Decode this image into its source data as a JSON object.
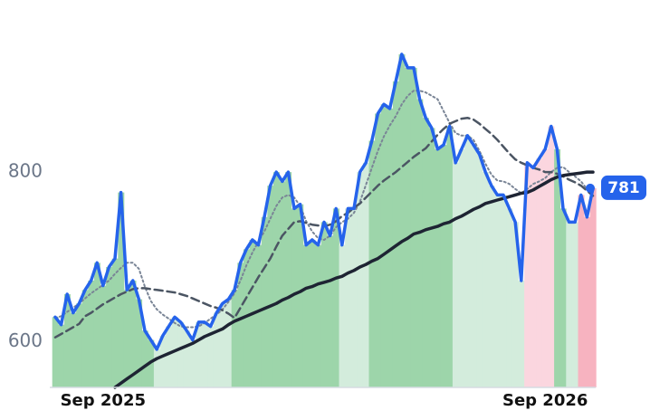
{
  "chart_data": {
    "type": "line",
    "categories": [
      null,
      null,
      null,
      null,
      null,
      null,
      null,
      null,
      "Sep 2025",
      null,
      null,
      null,
      null,
      null,
      null,
      null,
      null,
      null,
      null,
      null,
      null,
      null,
      null,
      null,
      null,
      null,
      null,
      null,
      null,
      null,
      null,
      null,
      null,
      null,
      null,
      null,
      null,
      null,
      null,
      null,
      null,
      null,
      null,
      null,
      null,
      null,
      null,
      null,
      null,
      null,
      null,
      null,
      null,
      null,
      null,
      null,
      null,
      null,
      null,
      null,
      null,
      null,
      null,
      null,
      null,
      null,
      null,
      null,
      null,
      null,
      null,
      null,
      null,
      null,
      null,
      null,
      null,
      null,
      null,
      null,
      null,
      null,
      "Sep 2026",
      null,
      null,
      null,
      null,
      null,
      null,
      null,
      null
    ],
    "series": [
      {
        "color": "#2563eb",
        "values": [
          629,
          620,
          656,
          634,
          645,
          661,
          672,
          693,
          666,
          688,
          698,
          776,
          661,
          672,
          650,
          613,
          602,
          591,
          607,
          618,
          629,
          623,
          613,
          602,
          623,
          623,
          618,
          634,
          645,
          650,
          661,
          693,
          709,
          720,
          714,
          747,
          784,
          800,
          789,
          800,
          757,
          762,
          714,
          720,
          714,
          741,
          725,
          757,
          714,
          757,
          757,
          800,
          811,
          837,
          869,
          880,
          875,
          907,
          939,
          923,
          923,
          886,
          864,
          852,
          827,
          832,
          854,
          811,
          827,
          843,
          832,
          821,
          800,
          784,
          773,
          773,
          757,
          741,
          672,
          811,
          805,
          816,
          827,
          854,
          827,
          757,
          741,
          741,
          773,
          747,
          781
        ],
        "fill_colors": [
          "#9dd5aa",
          "#9dd5aa",
          "#9dd5aa",
          "#9dd5aa",
          "#9dd5aa",
          "#9dd5aa",
          "#9dd5aa",
          "#9dd5aa",
          "#9dd5aa",
          "#9dd5aa",
          "#9dd5aa",
          "#9dd5aa",
          "#9dd5aa",
          "#9dd5aa",
          "#9dd5aa",
          "#9dd5aa",
          "#9dd5aa",
          "#d3ecdc",
          "#d3ecdc",
          "#d3ecdc",
          "#d3ecdc",
          "#d3ecdc",
          "#d3ecdc",
          "#d3ecdc",
          "#d3ecdc",
          "#d3ecdc",
          "#d3ecdc",
          "#d3ecdc",
          "#d3ecdc",
          "#d3ecdc",
          "#9dd5aa",
          "#9dd5aa",
          "#9dd5aa",
          "#9dd5aa",
          "#9dd5aa",
          "#9dd5aa",
          "#9dd5aa",
          "#9dd5aa",
          "#9dd5aa",
          "#9dd5aa",
          "#9dd5aa",
          "#9dd5aa",
          "#9dd5aa",
          "#9dd5aa",
          "#9dd5aa",
          "#9dd5aa",
          "#9dd5aa",
          "#9dd5aa",
          "#d3ecdc",
          "#d3ecdc",
          "#d3ecdc",
          "#d3ecdc",
          "#d3ecdc",
          "#9dd5aa",
          "#9dd5aa",
          "#9dd5aa",
          "#9dd5aa",
          "#9dd5aa",
          "#9dd5aa",
          "#9dd5aa",
          "#9dd5aa",
          "#9dd5aa",
          "#9dd5aa",
          "#9dd5aa",
          "#9dd5aa",
          "#9dd5aa",
          "#9dd5aa",
          "#d3ecdc",
          "#d3ecdc",
          "#d3ecdc",
          "#d3ecdc",
          "#d3ecdc",
          "#d3ecdc",
          "#d3ecdc",
          "#d3ecdc",
          "#d3ecdc",
          "#d3ecdc",
          "#d3ecdc",
          "#d3ecdc",
          "#fbd6df",
          "#fbd6df",
          "#fbd6df",
          "#fbd6df",
          "#fbd6df",
          "#9dd5aa",
          "#9dd5aa",
          "#d3ecdc",
          "#d3ecdc",
          "#f7b3c0",
          "#f7b3c0",
          "#f7b3c0"
        ]
      },
      {
        "color": "#7a8596",
        "dash": "2 3",
        "width": 2,
        "values": [
          628,
          630,
          635,
          640,
          645,
          651,
          657,
          662,
          667,
          672,
          680,
          687,
          693,
          693,
          686,
          665,
          648,
          638,
          632,
          627,
          622,
          618,
          617,
          617,
          618,
          622,
          627,
          632,
          638,
          647,
          657,
          672,
          690,
          705,
          718,
          730,
          745,
          760,
          770,
          773,
          770,
          760,
          742,
          730,
          722,
          720,
          725,
          735,
          741,
          745,
          752,
          765,
          785,
          805,
          825,
          842,
          855,
          866,
          880,
          890,
          896,
          896,
          894,
          890,
          886,
          872,
          858,
          846,
          843,
          843,
          838,
          825,
          810,
          797,
          790,
          789,
          786,
          780,
          775,
          780,
          786,
          789,
          793,
          800,
          805,
          806,
          800,
          795,
          789,
          780,
          775
        ]
      },
      {
        "color": "#4b5563",
        "dash": "9 5",
        "width": 2.5,
        "values": [
          605,
          609,
          613,
          617,
          621,
          630,
          634,
          639,
          644,
          648,
          652,
          656,
          659,
          662,
          663,
          663,
          662,
          661,
          660,
          659,
          658,
          656,
          654,
          651,
          648,
          645,
          642,
          640,
          637,
          633,
          628,
          640,
          652,
          664,
          676,
          687,
          698,
          712,
          725,
          733,
          741,
          742,
          740,
          738,
          737,
          736,
          738,
          742,
          748,
          752,
          758,
          763,
          770,
          777,
          784,
          790,
          795,
          800,
          806,
          812,
          818,
          823,
          828,
          836,
          844,
          851,
          857,
          860,
          863,
          864,
          862,
          857,
          851,
          845,
          838,
          830,
          822,
          815,
          811,
          808,
          805,
          803,
          800,
          800,
          798,
          795,
          791,
          788,
          784,
          778,
          772
        ]
      },
      {
        "color": "#1e2433",
        "width": 3.5,
        "values": [
          null,
          null,
          null,
          null,
          null,
          null,
          null,
          null,
          null,
          null,
          546,
          551,
          556,
          561,
          566,
          571,
          576,
          580,
          583,
          586,
          589,
          592,
          595,
          598,
          602,
          606,
          609,
          612,
          615,
          620,
          624,
          627,
          630,
          633,
          636,
          639,
          642,
          645,
          649,
          652,
          656,
          659,
          663,
          665,
          668,
          670,
          672,
          675,
          677,
          681,
          684,
          688,
          691,
          695,
          698,
          703,
          708,
          713,
          718,
          722,
          727,
          729,
          732,
          734,
          736,
          739,
          741,
          745,
          748,
          752,
          756,
          759,
          763,
          765,
          767,
          769,
          771,
          773,
          775,
          776,
          779,
          783,
          787,
          791,
          794,
          796,
          797,
          798,
          799,
          800,
          800
        ]
      }
    ],
    "ylim": [
      546,
      1003
    ],
    "yticks": [
      600,
      800
    ]
  }
}
